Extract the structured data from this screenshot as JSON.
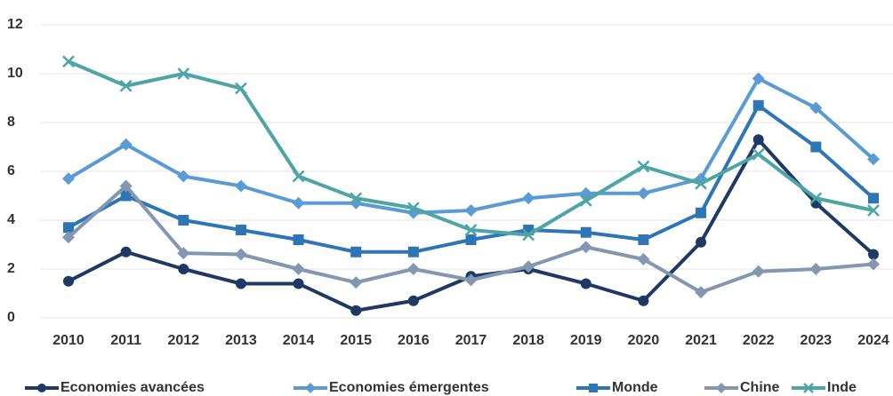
{
  "chart_data": {
    "type": "line",
    "categories": [
      "2010",
      "2011",
      "2012",
      "2013",
      "2014",
      "2015",
      "2016",
      "2017",
      "2018",
      "2019",
      "2020",
      "2021",
      "2022",
      "2023",
      "2024"
    ],
    "series": [
      {
        "name": "Economies avancées",
        "color": "#1f3864",
        "marker": "circle",
        "values": [
          1.5,
          2.7,
          2.0,
          1.4,
          1.4,
          0.3,
          0.7,
          1.7,
          2.0,
          1.4,
          0.7,
          3.1,
          7.3,
          4.7,
          2.6
        ]
      },
      {
        "name": "Economies émergentes",
        "color": "#5b9bd5",
        "marker": "diamond",
        "values": [
          5.7,
          7.1,
          5.8,
          5.4,
          4.7,
          4.7,
          4.3,
          4.4,
          4.9,
          5.1,
          5.1,
          5.7,
          9.8,
          8.6,
          6.5
        ]
      },
      {
        "name": "Monde",
        "color": "#2e75b6",
        "marker": "square",
        "values": [
          3.7,
          5.0,
          4.0,
          3.6,
          3.2,
          2.7,
          2.7,
          3.2,
          3.6,
          3.5,
          3.2,
          4.3,
          8.7,
          7.0,
          4.9
        ]
      },
      {
        "name": "Chine",
        "color": "#8496b0",
        "marker": "diamond",
        "values": [
          3.3,
          5.4,
          2.65,
          2.6,
          2.0,
          1.45,
          2.0,
          1.55,
          2.1,
          2.9,
          2.4,
          1.05,
          1.9,
          2.0,
          2.2
        ]
      },
      {
        "name": "Inde",
        "color": "#4ea5a5",
        "marker": "x",
        "values": [
          10.5,
          9.5,
          10.0,
          9.4,
          5.8,
          4.9,
          4.5,
          3.6,
          3.4,
          4.8,
          6.2,
          5.5,
          6.7,
          4.9,
          4.4
        ]
      }
    ],
    "ylim": [
      0,
      12
    ],
    "yticks": [
      0,
      2,
      4,
      6,
      8,
      10,
      12
    ],
    "grid": true,
    "legend": "bottom"
  }
}
